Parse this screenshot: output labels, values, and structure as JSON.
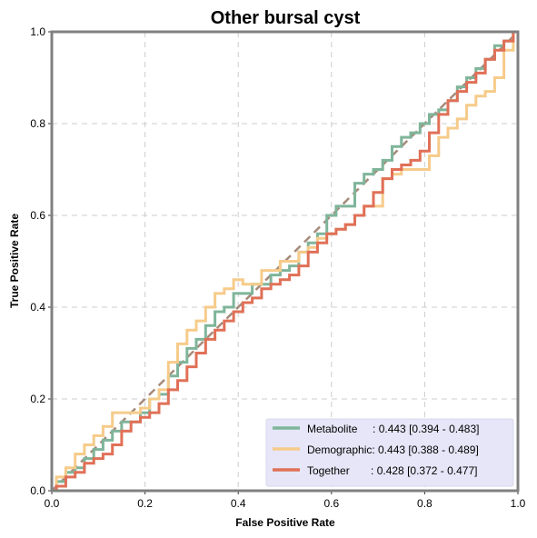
{
  "chart_data": {
    "type": "line",
    "title": "Other bursal cyst",
    "xlabel": "False Positive Rate",
    "ylabel": "True Positive Rate",
    "xlim": [
      0,
      1
    ],
    "ylim": [
      0,
      1
    ],
    "grid": true,
    "x_ticks": [
      "0.0",
      "0.2",
      "0.4",
      "0.6",
      "0.8",
      "1.0"
    ],
    "y_ticks": [
      "0.0",
      "0.2",
      "0.4",
      "0.6",
      "0.8",
      "1.0"
    ],
    "legend_position": "bottom-right",
    "diagonal_color": "#a68a7a",
    "series": [
      {
        "name": "Metabolite",
        "legend_label": "Metabolite     : 0.443 [0.394 - 0.483]",
        "color": "#7fb59a",
        "x": [
          0,
          0.02,
          0.04,
          0.06,
          0.08,
          0.1,
          0.12,
          0.14,
          0.16,
          0.18,
          0.2,
          0.22,
          0.24,
          0.26,
          0.28,
          0.3,
          0.32,
          0.34,
          0.36,
          0.38,
          0.4,
          0.42,
          0.44,
          0.46,
          0.48,
          0.5,
          0.52,
          0.54,
          0.56,
          0.58,
          0.6,
          0.62,
          0.64,
          0.66,
          0.68,
          0.7,
          0.72,
          0.74,
          0.76,
          0.78,
          0.8,
          0.82,
          0.84,
          0.86,
          0.88,
          0.9,
          0.92,
          0.94,
          0.96,
          0.98,
          1.0
        ],
        "y": [
          0,
          0.02,
          0.04,
          0.05,
          0.07,
          0.09,
          0.11,
          0.13,
          0.15,
          0.15,
          0.17,
          0.2,
          0.21,
          0.25,
          0.28,
          0.31,
          0.33,
          0.36,
          0.39,
          0.4,
          0.43,
          0.43,
          0.45,
          0.45,
          0.47,
          0.48,
          0.49,
          0.52,
          0.54,
          0.56,
          0.6,
          0.62,
          0.62,
          0.67,
          0.69,
          0.7,
          0.72,
          0.75,
          0.77,
          0.78,
          0.8,
          0.82,
          0.83,
          0.85,
          0.88,
          0.9,
          0.92,
          0.94,
          0.97,
          0.98,
          1.0
        ]
      },
      {
        "name": "Demographic",
        "legend_label": "Demographic: 0.443 [0.388 - 0.489]",
        "color": "#f6cb8a",
        "x": [
          0,
          0.02,
          0.04,
          0.06,
          0.08,
          0.1,
          0.12,
          0.14,
          0.16,
          0.18,
          0.2,
          0.22,
          0.24,
          0.26,
          0.28,
          0.3,
          0.32,
          0.34,
          0.36,
          0.38,
          0.4,
          0.42,
          0.44,
          0.46,
          0.48,
          0.5,
          0.52,
          0.54,
          0.56,
          0.58,
          0.6,
          0.62,
          0.64,
          0.66,
          0.68,
          0.7,
          0.72,
          0.74,
          0.76,
          0.78,
          0.8,
          0.82,
          0.84,
          0.86,
          0.88,
          0.9,
          0.92,
          0.94,
          0.96,
          0.98,
          1.0
        ],
        "y": [
          0,
          0.03,
          0.05,
          0.08,
          0.1,
          0.12,
          0.14,
          0.17,
          0.17,
          0.17,
          0.18,
          0.2,
          0.22,
          0.28,
          0.32,
          0.35,
          0.37,
          0.4,
          0.43,
          0.44,
          0.46,
          0.45,
          0.45,
          0.48,
          0.48,
          0.5,
          0.5,
          0.52,
          0.53,
          0.55,
          0.56,
          0.57,
          0.58,
          0.6,
          0.62,
          0.62,
          0.68,
          0.69,
          0.7,
          0.7,
          0.7,
          0.73,
          0.77,
          0.79,
          0.81,
          0.84,
          0.86,
          0.87,
          0.9,
          0.96,
          1.0
        ]
      },
      {
        "name": "Together",
        "legend_label": "Together       : 0.428 [0.372 - 0.477]",
        "color": "#e07057",
        "x": [
          0,
          0.02,
          0.04,
          0.06,
          0.08,
          0.1,
          0.12,
          0.14,
          0.16,
          0.18,
          0.2,
          0.22,
          0.24,
          0.26,
          0.28,
          0.3,
          0.32,
          0.34,
          0.36,
          0.38,
          0.4,
          0.42,
          0.44,
          0.46,
          0.48,
          0.5,
          0.52,
          0.54,
          0.56,
          0.58,
          0.6,
          0.62,
          0.64,
          0.66,
          0.68,
          0.7,
          0.72,
          0.74,
          0.76,
          0.78,
          0.8,
          0.82,
          0.84,
          0.86,
          0.88,
          0.9,
          0.92,
          0.94,
          0.96,
          0.98,
          1.0
        ],
        "y": [
          0,
          0.01,
          0.03,
          0.04,
          0.06,
          0.07,
          0.08,
          0.1,
          0.13,
          0.15,
          0.16,
          0.17,
          0.19,
          0.22,
          0.24,
          0.27,
          0.3,
          0.33,
          0.35,
          0.37,
          0.39,
          0.41,
          0.42,
          0.44,
          0.45,
          0.46,
          0.47,
          0.49,
          0.52,
          0.54,
          0.56,
          0.57,
          0.58,
          0.6,
          0.62,
          0.65,
          0.68,
          0.7,
          0.71,
          0.72,
          0.74,
          0.78,
          0.82,
          0.85,
          0.87,
          0.89,
          0.91,
          0.94,
          0.96,
          0.98,
          1.0
        ]
      }
    ]
  }
}
